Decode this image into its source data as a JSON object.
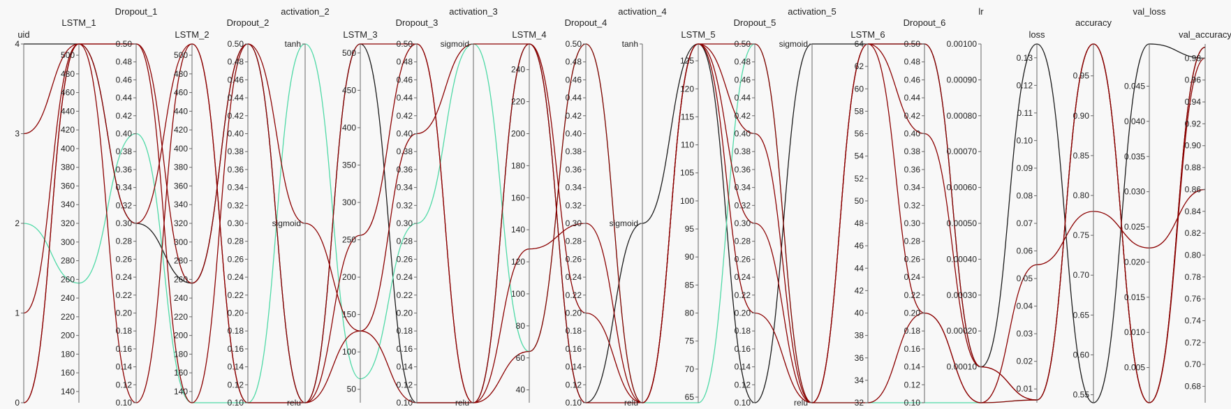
{
  "chart_data": {
    "type": "parallel_coordinates",
    "axes": [
      {
        "name": "uid",
        "min": 0,
        "max": 4,
        "ticks": [
          "0",
          "1",
          "2",
          "3",
          "4"
        ],
        "title_row": "low"
      },
      {
        "name": "LSTM_1",
        "min": 128,
        "max": 512,
        "ticks": [
          "140",
          "160",
          "180",
          "200",
          "220",
          "240",
          "260",
          "280",
          "300",
          "320",
          "340",
          "360",
          "380",
          "400",
          "420",
          "440",
          "460",
          "480",
          "500"
        ],
        "title_row": "mid"
      },
      {
        "name": "Dropout_1",
        "min": 0.1,
        "max": 0.5,
        "ticks": [
          "0.10",
          "0.12",
          "0.14",
          "0.16",
          "0.18",
          "0.20",
          "0.22",
          "0.24",
          "0.26",
          "0.28",
          "0.30",
          "0.32",
          "0.34",
          "0.36",
          "0.38",
          "0.40",
          "0.42",
          "0.44",
          "0.46",
          "0.48",
          "0.50"
        ],
        "title_row": "high"
      },
      {
        "name": "LSTM_2",
        "min": 128,
        "max": 512,
        "ticks": [
          "140",
          "160",
          "180",
          "200",
          "220",
          "240",
          "260",
          "280",
          "300",
          "320",
          "340",
          "360",
          "380",
          "400",
          "420",
          "440",
          "460",
          "480",
          "500"
        ],
        "title_row": "low"
      },
      {
        "name": "Dropout_2",
        "min": 0.1,
        "max": 0.5,
        "ticks": [
          "0.10",
          "0.12",
          "0.14",
          "0.16",
          "0.18",
          "0.20",
          "0.22",
          "0.24",
          "0.26",
          "0.28",
          "0.30",
          "0.32",
          "0.34",
          "0.36",
          "0.38",
          "0.40",
          "0.42",
          "0.44",
          "0.46",
          "0.48",
          "0.50"
        ],
        "title_row": "mid"
      },
      {
        "name": "activation_2",
        "categorical": true,
        "categories": [
          "relu",
          "sigmoid",
          "tanh"
        ],
        "ticks": [
          "relu",
          "sigmoid",
          "tanh"
        ],
        "title_row": "high"
      },
      {
        "name": "LSTM_3",
        "min": 32,
        "max": 512,
        "ticks": [
          "50",
          "100",
          "150",
          "200",
          "250",
          "300",
          "350",
          "400",
          "450",
          "500"
        ],
        "title_row": "low"
      },
      {
        "name": "Dropout_3",
        "min": 0.1,
        "max": 0.5,
        "ticks": [
          "0.10",
          "0.12",
          "0.14",
          "0.16",
          "0.18",
          "0.20",
          "0.22",
          "0.24",
          "0.26",
          "0.28",
          "0.30",
          "0.32",
          "0.34",
          "0.36",
          "0.38",
          "0.40",
          "0.42",
          "0.44",
          "0.46",
          "0.48",
          "0.50"
        ],
        "title_row": "mid"
      },
      {
        "name": "activation_3",
        "categorical": true,
        "categories": [
          "relu",
          "sigmoid"
        ],
        "ticks": [
          "relu",
          "sigmoid"
        ],
        "title_row": "high"
      },
      {
        "name": "LSTM_4",
        "min": 32,
        "max": 256,
        "ticks": [
          "40",
          "60",
          "80",
          "100",
          "120",
          "140",
          "160",
          "180",
          "200",
          "220",
          "240"
        ],
        "title_row": "low"
      },
      {
        "name": "Dropout_4",
        "min": 0.1,
        "max": 0.5,
        "ticks": [
          "0.10",
          "0.12",
          "0.14",
          "0.16",
          "0.18",
          "0.20",
          "0.22",
          "0.24",
          "0.26",
          "0.28",
          "0.30",
          "0.32",
          "0.34",
          "0.36",
          "0.38",
          "0.40",
          "0.42",
          "0.44",
          "0.46",
          "0.48",
          "0.50"
        ],
        "title_row": "mid"
      },
      {
        "name": "activation_4",
        "categorical": true,
        "categories": [
          "relu",
          "sigmoid",
          "tanh"
        ],
        "ticks": [
          "relu",
          "sigmoid",
          "tanh"
        ],
        "title_row": "high"
      },
      {
        "name": "LSTM_5",
        "min": 64,
        "max": 128,
        "ticks": [
          "65",
          "70",
          "75",
          "80",
          "85",
          "90",
          "95",
          "100",
          "105",
          "110",
          "115",
          "120",
          "125"
        ],
        "title_row": "low"
      },
      {
        "name": "Dropout_5",
        "min": 0.1,
        "max": 0.5,
        "ticks": [
          "0.10",
          "0.12",
          "0.14",
          "0.16",
          "0.18",
          "0.20",
          "0.22",
          "0.24",
          "0.26",
          "0.28",
          "0.30",
          "0.32",
          "0.34",
          "0.36",
          "0.38",
          "0.40",
          "0.42",
          "0.44",
          "0.46",
          "0.48",
          "0.50"
        ],
        "title_row": "mid"
      },
      {
        "name": "activation_5",
        "categorical": true,
        "categories": [
          "relu",
          "sigmoid"
        ],
        "ticks": [
          "relu",
          "sigmoid"
        ],
        "title_row": "high"
      },
      {
        "name": "LSTM_6",
        "min": 32,
        "max": 64,
        "ticks": [
          "32",
          "34",
          "36",
          "38",
          "40",
          "42",
          "44",
          "46",
          "48",
          "50",
          "52",
          "54",
          "56",
          "58",
          "60",
          "62",
          "64"
        ],
        "title_row": "low"
      },
      {
        "name": "Dropout_6",
        "min": 0.1,
        "max": 0.5,
        "ticks": [
          "0.10",
          "0.12",
          "0.14",
          "0.16",
          "0.18",
          "0.20",
          "0.22",
          "0.24",
          "0.26",
          "0.28",
          "0.30",
          "0.32",
          "0.34",
          "0.36",
          "0.38",
          "0.40",
          "0.42",
          "0.44",
          "0.46",
          "0.48",
          "0.50"
        ],
        "title_row": "mid"
      },
      {
        "name": "lr",
        "min": 0,
        "max": 0.001,
        "ticks": [
          "0.00010",
          "0.00020",
          "0.00030",
          "0.00040",
          "0.00050",
          "0.00060",
          "0.00070",
          "0.00080",
          "0.00090",
          "0.00100"
        ],
        "title_row": "high"
      },
      {
        "name": "loss",
        "min": 0.005,
        "max": 0.135,
        "ticks": [
          "0.01",
          "0.02",
          "0.03",
          "0.04",
          "0.05",
          "0.06",
          "0.07",
          "0.08",
          "0.09",
          "0.10",
          "0.11",
          "0.12",
          "0.13"
        ],
        "title_row": "low"
      },
      {
        "name": "accuracy",
        "min": 0.54,
        "max": 0.99,
        "ticks": [
          "0.55",
          "0.60",
          "0.65",
          "0.70",
          "0.75",
          "0.80",
          "0.85",
          "0.90",
          "0.95"
        ],
        "title_row": "mid"
      },
      {
        "name": "val_loss",
        "min": 0,
        "max": 0.051,
        "ticks": [
          "0.005",
          "0.010",
          "0.015",
          "0.020",
          "0.025",
          "0.030",
          "0.035",
          "0.040",
          "0.045"
        ],
        "title_row": "high"
      },
      {
        "name": "val_accuracy",
        "min": 0.665,
        "max": 0.993,
        "ticks": [
          "0.68",
          "0.70",
          "0.72",
          "0.74",
          "0.76",
          "0.78",
          "0.80",
          "0.82",
          "0.84",
          "0.86",
          "0.88",
          "0.90",
          "0.92",
          "0.94",
          "0.96",
          "0.98"
        ],
        "title_row": "low"
      }
    ],
    "series": [
      {
        "color": "#1a1a1a",
        "values": [
          4,
          512,
          0.3,
          256,
          0.5,
          "relu",
          512,
          0.1,
          "relu",
          256,
          0.1,
          "sigmoid",
          128,
          0.1,
          "sigmoid",
          64,
          0.5,
          0.0001,
          0.135,
          0.54,
          0.051,
          0.98
        ]
      },
      {
        "color": "#4fd9a6",
        "values": [
          2,
          256,
          0.4,
          128,
          0.1,
          "tanh",
          64,
          0.3,
          "sigmoid",
          64,
          0.5,
          "relu",
          64,
          0.5,
          "relu",
          32,
          0.1,
          0.0,
          0.006,
          0.99,
          0.0,
          0.99
        ]
      },
      {
        "color": "#8b0000",
        "values": [
          3,
          512,
          0.5,
          256,
          0.5,
          "relu",
          128,
          0.4,
          "sigmoid",
          256,
          0.1,
          "relu",
          128,
          0.4,
          "relu",
          64,
          0.5,
          0.0001,
          0.006,
          0.99,
          0.0,
          0.98
        ]
      },
      {
        "color": "#8b0000",
        "values": [
          1,
          512,
          0.3,
          512,
          0.1,
          "relu",
          512,
          0.5,
          "relu",
          64,
          0.5,
          "relu",
          128,
          0.2,
          "relu",
          64,
          0.2,
          0.0,
          0.006,
          0.99,
          0.0,
          0.99
        ]
      },
      {
        "color": "#8b0000",
        "values": [
          0,
          512,
          0.5,
          128,
          0.5,
          "sigmoid",
          128,
          0.1,
          "relu",
          128,
          0.3,
          "relu",
          128,
          0.3,
          "relu",
          64,
          0.4,
          0.0001,
          0.006,
          0.99,
          0.0,
          0.99
        ]
      },
      {
        "color": "#8b0000",
        "values": [
          0,
          512,
          0.1,
          512,
          0.1,
          "relu",
          256,
          0.5,
          "relu",
          256,
          0.2,
          "relu",
          128,
          0.5,
          "relu",
          32,
          0.2,
          0.0,
          0.055,
          0.78,
          0.022,
          0.86
        ]
      }
    ]
  }
}
